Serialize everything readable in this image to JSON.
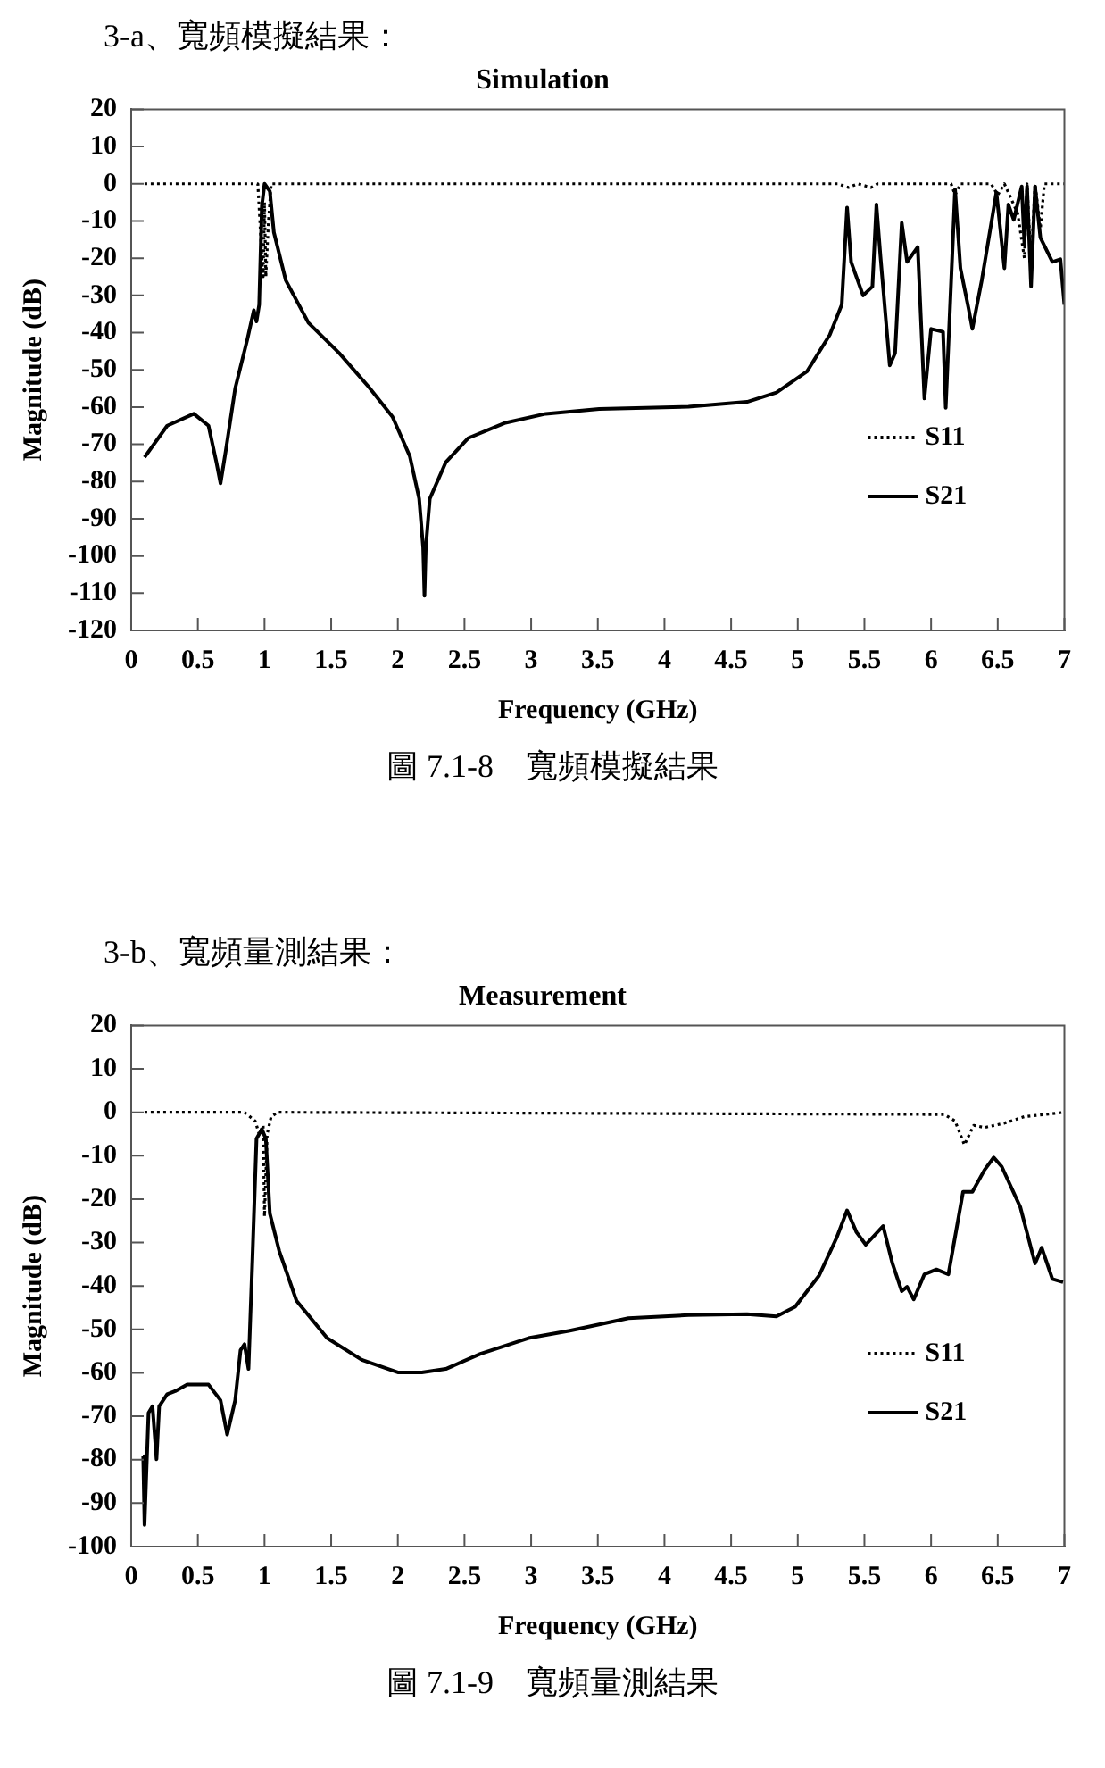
{
  "chart_data": [
    {
      "type": "line",
      "title": "Simulation",
      "xlabel": "Frequency (GHz)",
      "ylabel": "Magnitude (dB)",
      "annotations": [
        "3-a、寬頻模擬結果：",
        "圖 7.1-8　寬頻模擬結果"
      ],
      "xlim": [
        0,
        7
      ],
      "xticks": [
        0,
        0.5,
        1,
        1.5,
        2,
        2.5,
        3,
        3.5,
        4,
        4.5,
        5,
        5.5,
        6,
        6.5,
        7
      ],
      "ylim": [
        -120,
        20
      ],
      "yticks": [
        -120,
        -110,
        -100,
        -90,
        -80,
        -70,
        -60,
        -50,
        -40,
        -30,
        -20,
        -10,
        0,
        10,
        20
      ],
      "legend": "right",
      "marker": "none",
      "series": [
        {
          "name": "S11",
          "color": "#000000",
          "line_style": "dotted",
          "x": [
            0.1,
            0.95,
            0.98,
            0.99,
            1.0,
            1.01,
            1.03,
            1.05,
            5.3,
            5.38,
            5.45,
            5.55,
            5.6,
            6.15,
            6.18,
            6.22,
            6.45,
            6.5,
            6.55,
            6.65,
            6.7,
            6.72,
            6.75,
            6.78,
            6.82,
            6.85,
            7.0
          ],
          "values": [
            0,
            0,
            -20,
            -25,
            -5,
            -25,
            -10,
            0,
            0,
            -1,
            0,
            -1,
            0,
            0,
            -3,
            0,
            0,
            -3,
            0,
            -8,
            -20,
            0,
            -22,
            0,
            -12,
            0,
            0
          ]
        },
        {
          "name": "S21",
          "color": "#000000",
          "line_style": "solid",
          "x": [
            0.1,
            0.27,
            0.47,
            0.58,
            0.64,
            0.67,
            0.71,
            0.78,
            0.87,
            0.92,
            0.94,
            0.96,
            0.98,
            1.0,
            1.04,
            1.07,
            1.16,
            1.33,
            1.56,
            1.78,
            1.96,
            2.09,
            2.16,
            2.19,
            2.2,
            2.21,
            2.24,
            2.36,
            2.53,
            2.8,
            3.11,
            3.51,
            4.18,
            4.62,
            4.84,
            5.07,
            5.24,
            5.33,
            5.37,
            5.4,
            5.49,
            5.56,
            5.59,
            5.62,
            5.69,
            5.73,
            5.78,
            5.82,
            5.9,
            5.95,
            6.0,
            6.09,
            6.11,
            6.18,
            6.22,
            6.28,
            6.31,
            6.38,
            6.49,
            6.55,
            6.58,
            6.62,
            6.68,
            6.7,
            6.72,
            6.75,
            6.78,
            6.82,
            6.91,
            6.97,
            7.0
          ],
          "values": [
            -73.5,
            -65,
            -61.8,
            -65,
            -75,
            -80.5,
            -71.6,
            -55,
            -42,
            -34,
            -37,
            -32.5,
            -6,
            0,
            -2,
            -13,
            -26,
            -37.4,
            -45.5,
            -54.5,
            -62.6,
            -73.2,
            -84.6,
            -97.7,
            -110.7,
            -97.7,
            -84.6,
            -74.8,
            -68.3,
            -64.3,
            -61.8,
            -60.5,
            -59.9,
            -58.6,
            -56.1,
            -50.4,
            -40.6,
            -32.5,
            -6.4,
            -21,
            -30,
            -27.6,
            -5.6,
            -19.4,
            -48.8,
            -45.5,
            -10.5,
            -21,
            -17,
            -57.7,
            -39,
            -39.8,
            -60.2,
            -1.5,
            -22.7,
            -33.3,
            -39,
            -26,
            -2.3,
            -22.7,
            -5.6,
            -9.7,
            -0.7,
            -16.2,
            -0.7,
            -27.6,
            -0.7,
            -14.5,
            -21,
            -20.3,
            -32.5
          ]
        }
      ]
    },
    {
      "type": "line",
      "title": "Measurement",
      "xlabel": "Frequency (GHz)",
      "ylabel": "Magnitude (dB)",
      "annotations": [
        "3-b、寬頻量測結果：",
        "圖 7.1-9　寬頻量測結果"
      ],
      "xlim": [
        0,
        7
      ],
      "xticks": [
        0,
        0.5,
        1,
        1.5,
        2,
        2.5,
        3,
        3.5,
        4,
        4.5,
        5,
        5.5,
        6,
        6.5,
        7
      ],
      "ylim": [
        -100,
        20
      ],
      "yticks": [
        -100,
        -90,
        -80,
        -70,
        -60,
        -50,
        -40,
        -30,
        -20,
        -10,
        0,
        10,
        20
      ],
      "legend": "right",
      "marker": "none",
      "series": [
        {
          "name": "S11",
          "color": "#000000",
          "line_style": "dotted",
          "x": [
            0.1,
            0.85,
            0.93,
            0.96,
            0.99,
            1.0,
            1.02,
            1.05,
            1.1,
            6.1,
            6.18,
            6.25,
            6.32,
            6.4,
            6.55,
            6.7,
            7.0
          ],
          "values": [
            0,
            0,
            -2,
            -5,
            -3,
            -24,
            -5,
            -1,
            0,
            -0.5,
            -2,
            -7.5,
            -3,
            -3.5,
            -2.5,
            -1,
            0
          ]
        },
        {
          "name": "S21",
          "color": "#000000",
          "line_style": "solid",
          "x": [
            0.09,
            0.1,
            0.12,
            0.13,
            0.16,
            0.19,
            0.21,
            0.27,
            0.33,
            0.42,
            0.58,
            0.67,
            0.72,
            0.78,
            0.82,
            0.85,
            0.88,
            0.91,
            0.94,
            0.98,
            1.01,
            1.04,
            1.11,
            1.24,
            1.47,
            1.73,
            2.0,
            2.18,
            2.36,
            2.62,
            2.98,
            3.29,
            3.73,
            4.18,
            4.62,
            4.84,
            4.98,
            5.16,
            5.29,
            5.37,
            5.44,
            5.51,
            5.64,
            5.71,
            5.78,
            5.82,
            5.87,
            5.95,
            6.04,
            6.13,
            6.24,
            6.31,
            6.4,
            6.47,
            6.53,
            6.67,
            6.78,
            6.83,
            6.91,
            6.99
          ],
          "values": [
            -79.2,
            -95,
            -77.8,
            -69.2,
            -67.7,
            -79.9,
            -67.7,
            -64.9,
            -64.2,
            -62.7,
            -62.7,
            -66.3,
            -74.2,
            -66.3,
            -54.8,
            -53.4,
            -59.1,
            -33.3,
            -6.1,
            -3.9,
            -6.1,
            -23.3,
            -31.9,
            -43.4,
            -52,
            -57,
            -59.9,
            -59.9,
            -59.1,
            -55.6,
            -52,
            -50.3,
            -47.4,
            -46.7,
            -46.5,
            -47,
            -44.8,
            -37.6,
            -29,
            -22.6,
            -27.6,
            -30.5,
            -26.2,
            -34.8,
            -41.2,
            -40.2,
            -43.1,
            -37.3,
            -36.2,
            -37.3,
            -18.3,
            -18.3,
            -13.3,
            -10.4,
            -12.5,
            -21.9,
            -34.8,
            -31.2,
            -38.4,
            -39.1
          ]
        }
      ]
    }
  ]
}
